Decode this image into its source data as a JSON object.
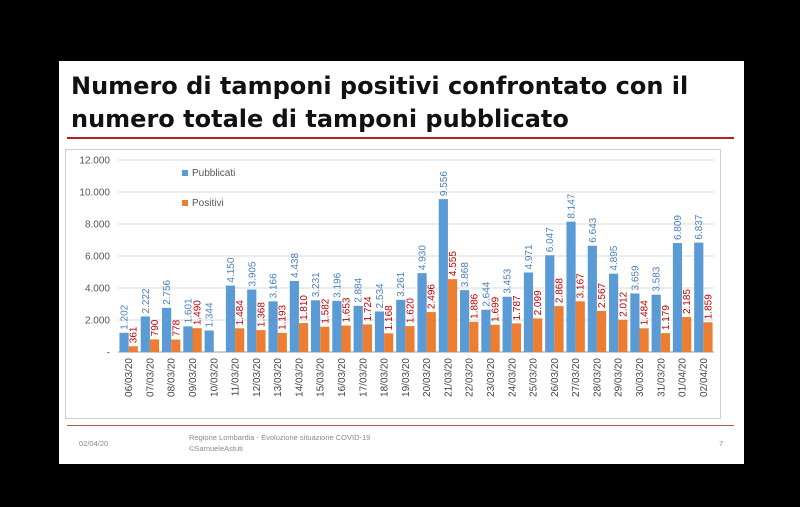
{
  "slide": {
    "title": "Numero di tamponi positivi confrontato con il numero totale di tamponi pubblicato",
    "footer_date": "02/04/20",
    "footer_source_line1": "Regione Lombardia - Evoluzione situazione COVID-19",
    "footer_source_line2": "©SamueleAstuti",
    "page_number": "7"
  },
  "colors": {
    "pubblicati": "#5b9bd5",
    "positivi": "#ed7d31",
    "accent_rule": "#b22222"
  },
  "chart_data": {
    "type": "bar",
    "title": "",
    "xlabel": "",
    "ylabel": "",
    "ylim": [
      0,
      12000
    ],
    "y_ticks": [
      0,
      2000,
      4000,
      6000,
      8000,
      10000,
      12000
    ],
    "y_tick_labels": [
      "-",
      "2.000",
      "4.000",
      "6.000",
      "8.000",
      "10.000",
      "12.000"
    ],
    "grid": true,
    "legend_position": "top-left",
    "categories": [
      "06/03/20",
      "07/03/20",
      "08/03/20",
      "09/03/20",
      "10/03/20",
      "11/03/20",
      "12/03/20",
      "13/03/20",
      "14/03/20",
      "15/03/20",
      "16/03/20",
      "17/03/20",
      "18/03/20",
      "19/03/20",
      "20/03/20",
      "21/03/20",
      "22/03/20",
      "23/03/20",
      "24/03/20",
      "25/03/20",
      "26/03/20",
      "27/03/20",
      "28/03/20",
      "29/03/20",
      "30/03/20",
      "31/03/20",
      "01/04/20",
      "02/04/20"
    ],
    "series": [
      {
        "name": "Pubblicati",
        "values": [
          1202,
          2222,
          2756,
          1601,
          1344,
          4150,
          3905,
          3166,
          4438,
          3231,
          3196,
          2884,
          2534,
          3261,
          4930,
          9556,
          3868,
          2644,
          3453,
          4971,
          6047,
          8147,
          6643,
          4895,
          3659,
          3583,
          6809,
          6837
        ],
        "labels": [
          "1.202",
          "2.222",
          "2.756",
          "1.601",
          "1.344",
          "4.150",
          "3.905",
          "3.166",
          "4.438",
          "3.231",
          "3.196",
          "2.884",
          "2.534",
          "3.261",
          "4.930",
          "9.556",
          "3.868",
          "2.644",
          "3.453",
          "4.971",
          "6.047",
          "8.147",
          "6.643",
          "4.895",
          "3.659",
          "3.583",
          "6.809",
          "6.837"
        ]
      },
      {
        "name": "Positivi",
        "values": [
          361,
          790,
          778,
          1490,
          null,
          1484,
          1368,
          1193,
          1810,
          1582,
          1653,
          1724,
          1168,
          1620,
          2496,
          4555,
          1886,
          1699,
          1787,
          2099,
          2868,
          3167,
          2567,
          2012,
          1484,
          1179,
          2185,
          1859
        ],
        "labels": [
          "361",
          "790",
          "778",
          "1.490",
          "",
          "1.484",
          "1.368",
          "1.193",
          "1.810",
          "1.582",
          "1.653",
          "1.724",
          "1.168",
          "1.620",
          "2.496",
          "4.555",
          "1.886",
          "1.699",
          "1.787",
          "2.099",
          "2.868",
          "3.167",
          "2.567",
          "2.012",
          "1.484",
          "1.179",
          "2.185",
          "1.859"
        ]
      }
    ]
  }
}
